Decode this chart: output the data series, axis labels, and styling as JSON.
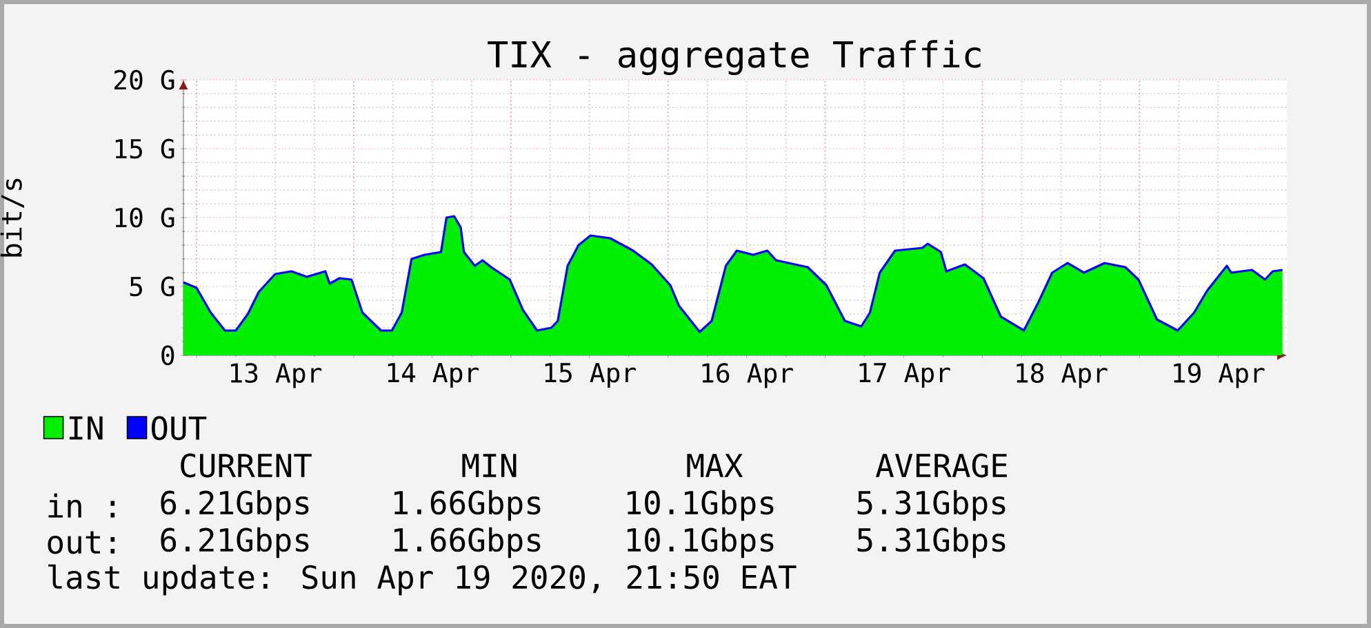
{
  "chart_data": {
    "type": "area",
    "title": "TIX - aggregate Traffic",
    "ylabel": "bit/s",
    "x": [
      "2020-04-12T22:00",
      "2020-04-13T00:00",
      "2020-04-13T02:10",
      "2020-04-13T04:20",
      "2020-04-13T06:00",
      "2020-04-13T07:50",
      "2020-04-13T09:30",
      "2020-04-13T12:00",
      "2020-04-13T14:30",
      "2020-04-13T16:50",
      "2020-04-13T19:40",
      "2020-04-13T20:20",
      "2020-04-13T21:50",
      "2020-04-13T23:40",
      "2020-04-14T01:20",
      "2020-04-14T04:10",
      "2020-04-14T05:50",
      "2020-04-14T07:20",
      "2020-04-14T08:50",
      "2020-04-14T10:50",
      "2020-04-14T13:20",
      "2020-04-14T14:10",
      "2020-04-14T15:20",
      "2020-04-14T16:20",
      "2020-04-14T16:50",
      "2020-04-14T18:30",
      "2020-04-14T19:40",
      "2020-04-14T21:00",
      "2020-04-14T23:50",
      "2020-04-15T01:50",
      "2020-04-15T04:00",
      "2020-04-15T06:10",
      "2020-04-15T07:10",
      "2020-04-15T08:40",
      "2020-04-15T10:20",
      "2020-04-15T12:10",
      "2020-04-15T15:10",
      "2020-04-15T18:40",
      "2020-04-15T21:30",
      "2020-04-16T00:20",
      "2020-04-16T01:40",
      "2020-04-16T04:50",
      "2020-04-16T06:40",
      "2020-04-16T08:50",
      "2020-04-16T10:30",
      "2020-04-16T13:00",
      "2020-04-16T15:10",
      "2020-04-16T16:30",
      "2020-04-16T21:20",
      "2020-04-17T00:10",
      "2020-04-17T03:00",
      "2020-04-17T05:30",
      "2020-04-17T06:50",
      "2020-04-17T08:20",
      "2020-04-17T10:40",
      "2020-04-17T14:50",
      "2020-04-17T15:40",
      "2020-04-17T17:40",
      "2020-04-17T18:30",
      "2020-04-17T21:20",
      "2020-04-18T00:10",
      "2020-04-18T02:50",
      "2020-04-18T06:20",
      "2020-04-18T08:30",
      "2020-04-18T10:40",
      "2020-04-18T13:00",
      "2020-04-18T15:30",
      "2020-04-18T18:40",
      "2020-04-18T21:50",
      "2020-04-18T23:50",
      "2020-04-19T02:40",
      "2020-04-19T05:50",
      "2020-04-19T08:20",
      "2020-04-19T10:20",
      "2020-04-19T13:20",
      "2020-04-19T14:00",
      "2020-04-19T17:10",
      "2020-04-19T19:10",
      "2020-04-19T20:20",
      "2020-04-19T21:50"
    ],
    "series": [
      {
        "name": "IN",
        "color": "#00ee00",
        "values": [
          5.3,
          4.9,
          3.1,
          1.8,
          1.8,
          3.0,
          4.6,
          5.9,
          6.1,
          5.7,
          6.1,
          5.2,
          5.6,
          5.5,
          3.1,
          1.8,
          1.8,
          3.1,
          7.0,
          7.3,
          7.5,
          10.0,
          10.1,
          9.3,
          7.5,
          6.5,
          6.9,
          6.4,
          5.5,
          3.3,
          1.8,
          2.0,
          2.5,
          6.5,
          8.0,
          8.7,
          8.5,
          7.6,
          6.6,
          5.1,
          3.6,
          1.7,
          2.5,
          6.5,
          7.6,
          7.3,
          7.6,
          6.9,
          6.4,
          5.1,
          2.5,
          2.1,
          3.1,
          6.0,
          7.6,
          7.8,
          8.1,
          7.5,
          6.1,
          6.6,
          5.6,
          2.8,
          1.8,
          3.8,
          6.0,
          6.7,
          6.0,
          6.7,
          6.4,
          5.5,
          2.6,
          1.8,
          3.1,
          4.7,
          6.5,
          6.0,
          6.2,
          5.5,
          6.1,
          6.2
        ]
      },
      {
        "name": "OUT",
        "type": "line",
        "color": "#0000ff",
        "values": [
          5.3,
          4.9,
          3.1,
          1.8,
          1.8,
          3.0,
          4.6,
          5.9,
          6.1,
          5.7,
          6.1,
          5.2,
          5.6,
          5.5,
          3.1,
          1.8,
          1.8,
          3.1,
          7.0,
          7.3,
          7.5,
          10.0,
          10.1,
          9.3,
          7.5,
          6.5,
          6.9,
          6.4,
          5.5,
          3.3,
          1.8,
          2.0,
          2.5,
          6.5,
          8.0,
          8.7,
          8.5,
          7.6,
          6.6,
          5.1,
          3.6,
          1.7,
          2.5,
          6.5,
          7.6,
          7.3,
          7.6,
          6.9,
          6.4,
          5.1,
          2.5,
          2.1,
          3.1,
          6.0,
          7.6,
          7.8,
          8.1,
          7.5,
          6.1,
          6.6,
          5.6,
          2.8,
          1.8,
          3.8,
          6.0,
          6.7,
          6.0,
          6.7,
          6.4,
          5.5,
          2.6,
          1.8,
          3.1,
          4.7,
          6.5,
          6.0,
          6.2,
          5.5,
          6.1,
          6.2
        ]
      }
    ],
    "xlim": [
      "2020-04-12T22:00",
      "2020-04-19T22:30"
    ],
    "xticks": [
      {
        "value": "2020-04-13T00:00",
        "label": null
      },
      {
        "value": "2020-04-13T12:00",
        "label": "13 Apr"
      },
      {
        "value": "2020-04-14T00:00",
        "label": null
      },
      {
        "value": "2020-04-14T12:00",
        "label": "14 Apr"
      },
      {
        "value": "2020-04-15T00:00",
        "label": null
      },
      {
        "value": "2020-04-15T12:00",
        "label": "15 Apr"
      },
      {
        "value": "2020-04-16T00:00",
        "label": null
      },
      {
        "value": "2020-04-16T12:00",
        "label": "16 Apr"
      },
      {
        "value": "2020-04-17T00:00",
        "label": null
      },
      {
        "value": "2020-04-17T12:00",
        "label": "17 Apr"
      },
      {
        "value": "2020-04-18T00:00",
        "label": null
      },
      {
        "value": "2020-04-18T12:00",
        "label": "18 Apr"
      },
      {
        "value": "2020-04-19T00:00",
        "label": null
      },
      {
        "value": "2020-04-19T12:00",
        "label": "19 Apr"
      }
    ],
    "ylim": [
      0,
      20
    ],
    "yticks": [
      0,
      {
        "value": 5,
        "label": "5 G"
      },
      {
        "value": 10,
        "label": "10 G"
      },
      {
        "value": 15,
        "label": "15 G"
      },
      {
        "value": 20,
        "label": "20 G"
      }
    ],
    "grid": true,
    "legend": "bottom left",
    "annotations": [
      "CURRENT",
      "MIN",
      "MAX",
      "AVERAGE",
      "in :",
      "6.21Gbps",
      "1.66Gbps",
      "10.1Gbps",
      "5.31Gbps",
      "out:",
      "6.21Gbps",
      "1.66Gbps",
      "10.1Gbps",
      "5.31Gbps",
      "last update: Sun Apr 19 2020, 21:50 EAT"
    ]
  }
}
